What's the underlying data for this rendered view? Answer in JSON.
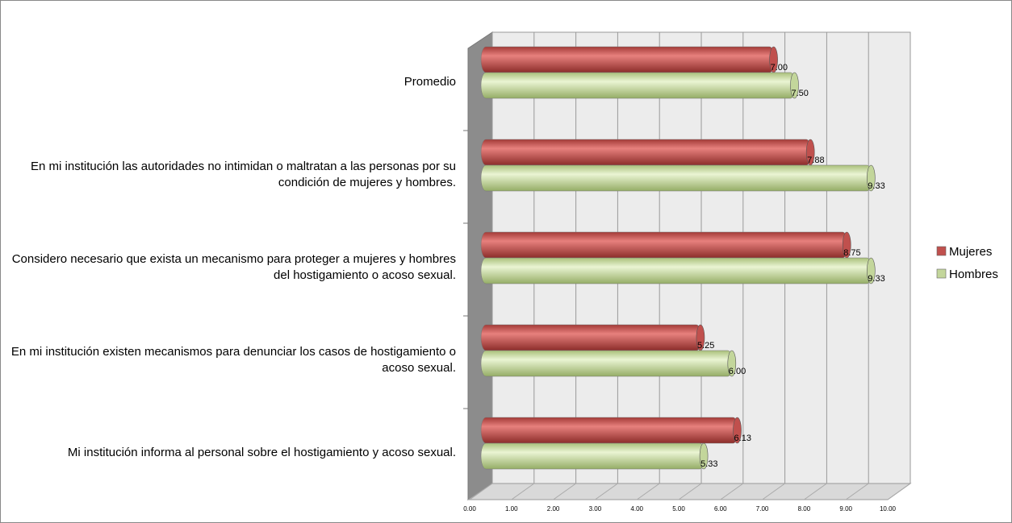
{
  "chart_data": {
    "type": "bar3d-horizontal",
    "categories": [
      "Promedio",
      "En mi institución las autoridades no intimidan o maltratan a las personas por su condición de mujeres y hombres.",
      "Considero necesario que exista un mecanismo para proteger a mujeres y hombres del hostigamiento o acoso sexual.",
      "En mi institución existen mecanismos para denunciar los casos de hostigamiento o acoso sexual.",
      "Mi institución informa al personal sobre el hostigamiento y acoso sexual."
    ],
    "series": [
      {
        "name": "Mujeres",
        "color": "#c0504d",
        "values": [
          7.0,
          7.88,
          8.75,
          5.25,
          6.13
        ],
        "value_labels": [
          "7.00",
          "7.88",
          "8.75",
          "5.25",
          "6.13"
        ]
      },
      {
        "name": "Hombres",
        "color": "#c3d69b",
        "values": [
          7.5,
          9.33,
          9.33,
          6.0,
          5.33
        ],
        "value_labels": [
          "7.50",
          "9.33",
          "9.33",
          "6.00",
          "5.33"
        ]
      }
    ],
    "xlim": [
      0,
      10
    ],
    "xticks": [
      {
        "value": 0,
        "label": "0.00"
      },
      {
        "value": 1,
        "label": "1.00"
      },
      {
        "value": 2,
        "label": "2.00"
      },
      {
        "value": 3,
        "label": "3.00"
      },
      {
        "value": 4,
        "label": "4.00"
      },
      {
        "value": 5,
        "label": "5.00"
      },
      {
        "value": 6,
        "label": "6.00"
      },
      {
        "value": 7,
        "label": "7.00"
      },
      {
        "value": 8,
        "label": "8.00"
      },
      {
        "value": 9,
        "label": "9.00"
      },
      {
        "value": 10,
        "label": "10.00"
      }
    ],
    "grid": true,
    "legend": "right"
  }
}
